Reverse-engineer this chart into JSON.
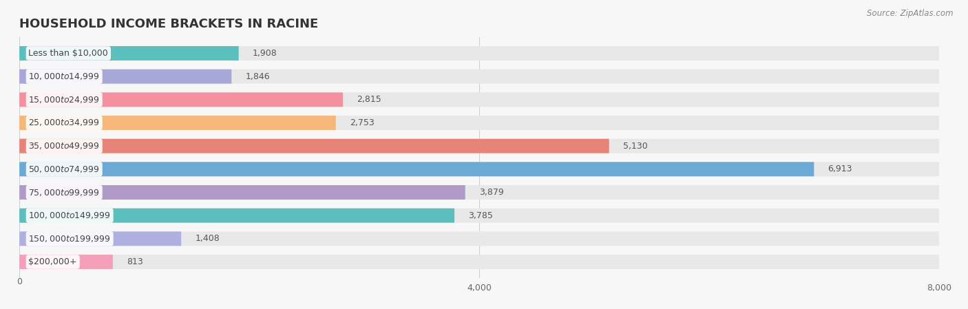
{
  "title": "HOUSEHOLD INCOME BRACKETS IN RACINE",
  "source": "Source: ZipAtlas.com",
  "categories": [
    "Less than $10,000",
    "$10,000 to $14,999",
    "$15,000 to $24,999",
    "$25,000 to $34,999",
    "$35,000 to $49,999",
    "$50,000 to $74,999",
    "$75,000 to $99,999",
    "$100,000 to $149,999",
    "$150,000 to $199,999",
    "$200,000+"
  ],
  "values": [
    1908,
    1846,
    2815,
    2753,
    5130,
    6913,
    3879,
    3785,
    1408,
    813
  ],
  "bar_colors": [
    "#5BBFBE",
    "#A8A8D8",
    "#F490A0",
    "#F5B87A",
    "#E8837A",
    "#6AAAD4",
    "#B09BC8",
    "#5BBFBE",
    "#B0B0E0",
    "#F4A0B8"
  ],
  "bg_color": "#f7f7f7",
  "bar_bg_color": "#e8e8e8",
  "xlim": [
    0,
    8000
  ],
  "xticks": [
    0,
    4000,
    8000
  ],
  "title_fontsize": 13,
  "label_fontsize": 9,
  "value_fontsize": 9,
  "source_fontsize": 8.5
}
